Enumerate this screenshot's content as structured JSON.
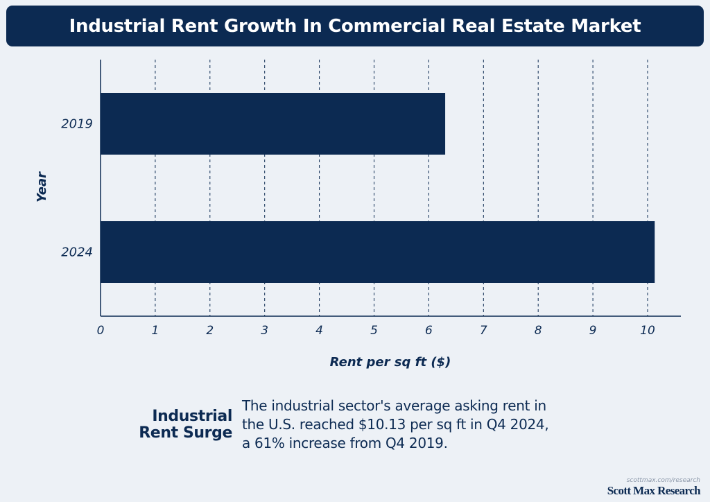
{
  "header": {
    "title": "Industrial Rent Growth In Commercial Real Estate Market"
  },
  "chart_data": {
    "type": "bar",
    "orientation": "horizontal",
    "title": "Industrial Rent Growth In Commercial Real Estate Market",
    "categories": [
      "2019",
      "2024"
    ],
    "values": [
      6.3,
      10.13
    ],
    "xlabel": "Rent per sq ft ($)",
    "ylabel": "Year",
    "xlim": [
      0,
      10.6
    ],
    "xticks": [
      "0",
      "1",
      "2",
      "3",
      "4",
      "5",
      "6",
      "7",
      "8",
      "9",
      "10"
    ],
    "grid": "vertical dashed",
    "bar_color": "#0c2a52"
  },
  "footer": {
    "heading": "Industrial Rent Surge",
    "description": "The industrial sector's average asking rent in the U.S. reached $10.13 per sq ft in Q4 2024, a 61% increase from Q4 2019."
  },
  "brand": {
    "url": "scottmax.com/research",
    "name": "Scott Max Research"
  }
}
